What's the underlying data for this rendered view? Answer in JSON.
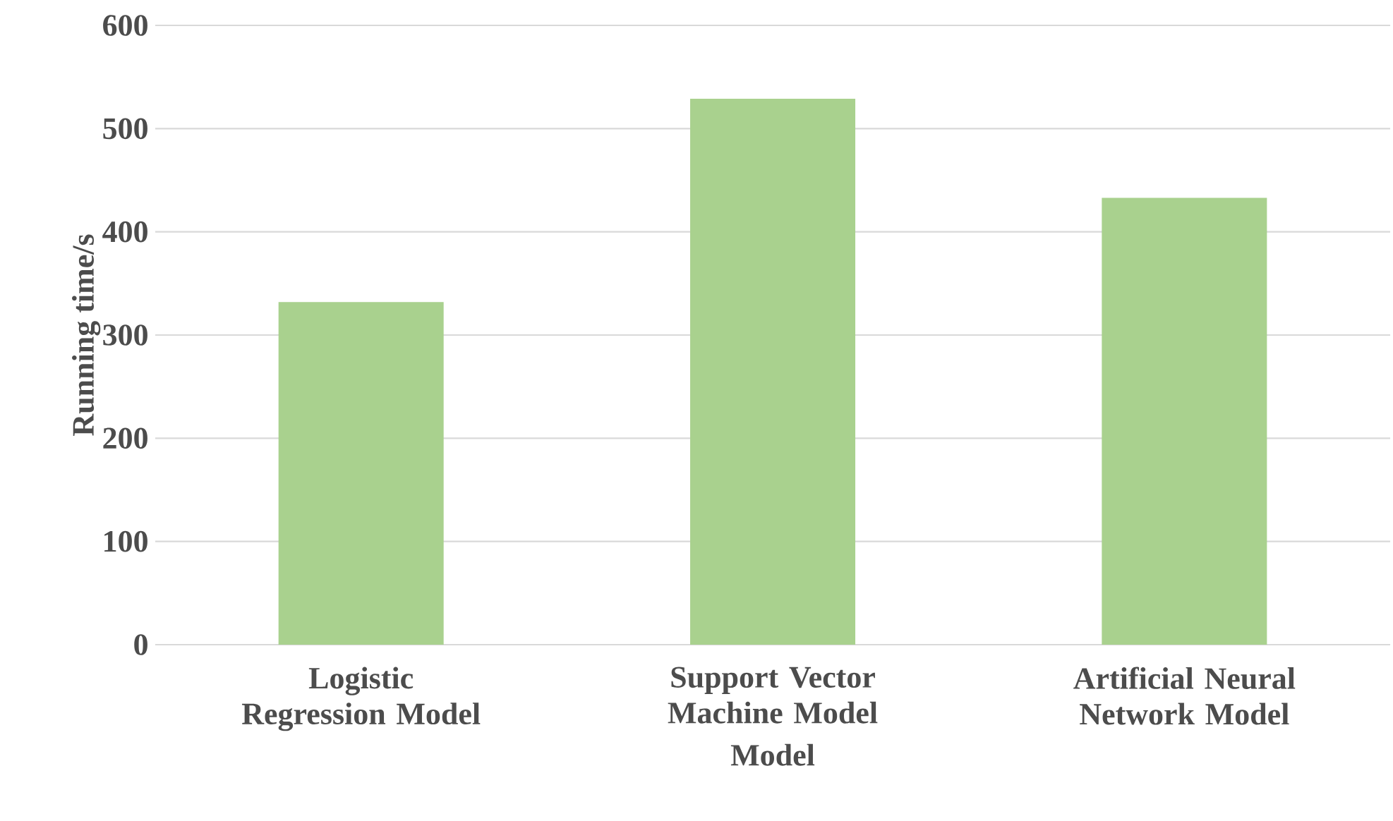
{
  "chart_data": {
    "type": "bar",
    "xlabel": "Model",
    "ylabel": "Running time/s",
    "categories": [
      "Logistic Regression Model",
      "Support Vector Machine Model",
      "Artificial Neural Network Model"
    ],
    "values": [
      332,
      529,
      433
    ],
    "color": "#a9d18e",
    "ylim": [
      0,
      600
    ],
    "yticks": [
      0,
      100,
      200,
      300,
      400,
      500,
      600
    ],
    "grid": "y"
  }
}
